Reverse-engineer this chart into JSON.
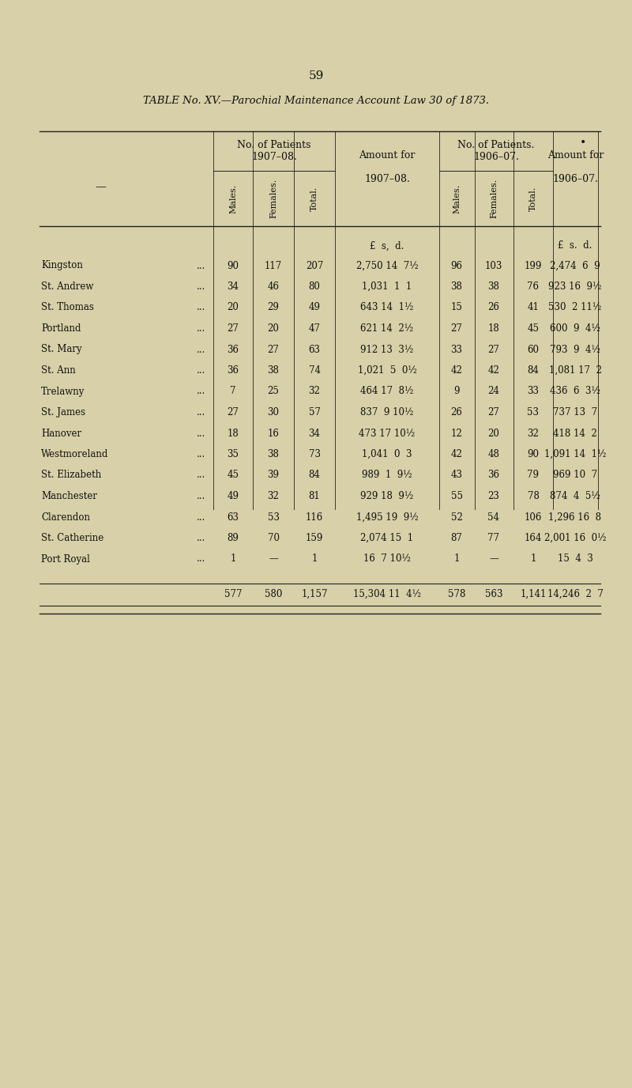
{
  "page_number": "59",
  "title": "TABLE No. XV.—Parochial Maintenance Account Law 30 of 1873.",
  "bg_color": "#d8d0a8",
  "rows": [
    {
      "parish": "Kingston",
      "m08": "90",
      "f08": "117",
      "t08": "207",
      "amt08": "2,750 14  7½",
      "m07": "96",
      "f07": "103",
      "t07": "199",
      "amt07": "2,474  6  9"
    },
    {
      "parish": "St. Andrew",
      "m08": "34",
      "f08": "46",
      "t08": "80",
      "amt08": "1,031  1  1",
      "m07": "38",
      "f07": "38",
      "t07": "76",
      "amt07": "923 16  9½"
    },
    {
      "parish": "St. Thomas",
      "m08": "20",
      "f08": "29",
      "t08": "49",
      "amt08": "643 14  1½",
      "m07": "15",
      "f07": "26",
      "t07": "41",
      "amt07": "530  2 11½"
    },
    {
      "parish": "Portland",
      "m08": "27",
      "f08": "20",
      "t08": "47",
      "amt08": "621 14  2½",
      "m07": "27",
      "f07": "18",
      "t07": "45",
      "amt07": "600  9  4½"
    },
    {
      "parish": "St. Mary",
      "m08": "36",
      "f08": "27",
      "t08": "63",
      "amt08": "912 13  3½",
      "m07": "33",
      "f07": "27",
      "t07": "60",
      "amt07": "793  9  4½"
    },
    {
      "parish": "St. Ann",
      "m08": "36",
      "f08": "38",
      "t08": "74",
      "amt08": "1,021  5  0½",
      "m07": "42",
      "f07": "42",
      "t07": "84",
      "amt07": "1,081 17  2"
    },
    {
      "parish": "Trelawny",
      "m08": "7",
      "f08": "25",
      "t08": "32",
      "amt08": "464 17  8½",
      "m07": "9",
      "f07": "24",
      "t07": "33",
      "amt07": "436  6  3½"
    },
    {
      "parish": "St. James",
      "m08": "27",
      "f08": "30",
      "t08": "57",
      "amt08": "837  9 10½",
      "m07": "26",
      "f07": "27",
      "t07": "53",
      "amt07": "737 13  7"
    },
    {
      "parish": "Hanover",
      "m08": "18",
      "f08": "16",
      "t08": "34",
      "amt08": "473 17 10½",
      "m07": "12",
      "f07": "20",
      "t07": "32",
      "amt07": "418 14  2"
    },
    {
      "parish": "Westmoreland",
      "m08": "35",
      "f08": "38",
      "t08": "73",
      "amt08": "1,041  0  3",
      "m07": "42",
      "f07": "48",
      "t07": "90",
      "amt07": "1,091 14  1½"
    },
    {
      "parish": "St. Elizabeth",
      "m08": "45",
      "f08": "39",
      "t08": "84",
      "amt08": "989  1  9½",
      "m07": "43",
      "f07": "36",
      "t07": "79",
      "amt07": "969 10  7"
    },
    {
      "parish": "Manchester",
      "m08": "49",
      "f08": "32",
      "t08": "81",
      "amt08": "929 18  9½",
      "m07": "55",
      "f07": "23",
      "t07": "78",
      "amt07": "874  4  5½"
    },
    {
      "parish": "Clarendon",
      "m08": "63",
      "f08": "53",
      "t08": "116",
      "amt08": "1,495 19  9½",
      "m07": "52",
      "f07": "54",
      "t07": "106",
      "amt07": "1,296 16  8"
    },
    {
      "parish": "St. Catherine",
      "m08": "89",
      "f08": "70",
      "t08": "159",
      "amt08": "2,074 15  1",
      "m07": "87",
      "f07": "77",
      "t07": "164",
      "amt07": "2,001 16  0½"
    },
    {
      "parish": "Port Royal",
      "m08": "1",
      "f08": "—",
      "t08": "1",
      "amt08": "16  7 10½",
      "m07": "1",
      "f07": "—",
      "t07": "1",
      "amt07": "15  4  3"
    }
  ],
  "totals_m08": "577",
  "totals_f08": "580",
  "totals_t08": "1,157",
  "totals_amt08": "15,304 11  4½",
  "totals_m07": "578",
  "totals_f07": "563",
  "totals_t07": "1,141",
  "totals_amt07": "14,246  2  7"
}
